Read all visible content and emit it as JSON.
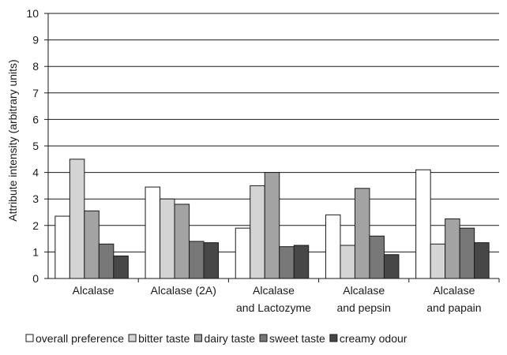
{
  "chart_data": {
    "type": "bar",
    "title": "",
    "xlabel": "",
    "ylabel": "Attribute intensity (arbitrary units)",
    "ylim": [
      0,
      10
    ],
    "yticks": [
      "0",
      "1",
      "2",
      "3",
      "4",
      "5",
      "6",
      "7",
      "8",
      "9",
      "10"
    ],
    "grid": true,
    "legend_position": "bottom",
    "categories": [
      [
        "Alcalase"
      ],
      [
        "Alcalase (2A)"
      ],
      [
        "Alcalase",
        "and Lactozyme"
      ],
      [
        "Alcalase",
        "and pepsin"
      ],
      [
        "Alcalase",
        "and papain"
      ]
    ],
    "series": [
      {
        "name": "overall preference",
        "color": "#ffffff",
        "values": [
          2.35,
          3.45,
          1.9,
          2.4,
          4.1
        ]
      },
      {
        "name": "bitter taste",
        "color": "#d4d4d4",
        "values": [
          4.5,
          3.0,
          3.5,
          1.25,
          1.3
        ]
      },
      {
        "name": "dairy taste",
        "color": "#a3a3a3",
        "values": [
          2.55,
          2.8,
          4.0,
          3.4,
          2.25
        ]
      },
      {
        "name": "sweet taste",
        "color": "#787878",
        "values": [
          1.3,
          1.4,
          1.2,
          1.6,
          1.9
        ]
      },
      {
        "name": "creamy odour",
        "color": "#474747",
        "values": [
          0.85,
          1.35,
          1.25,
          0.9,
          1.35
        ]
      }
    ]
  }
}
